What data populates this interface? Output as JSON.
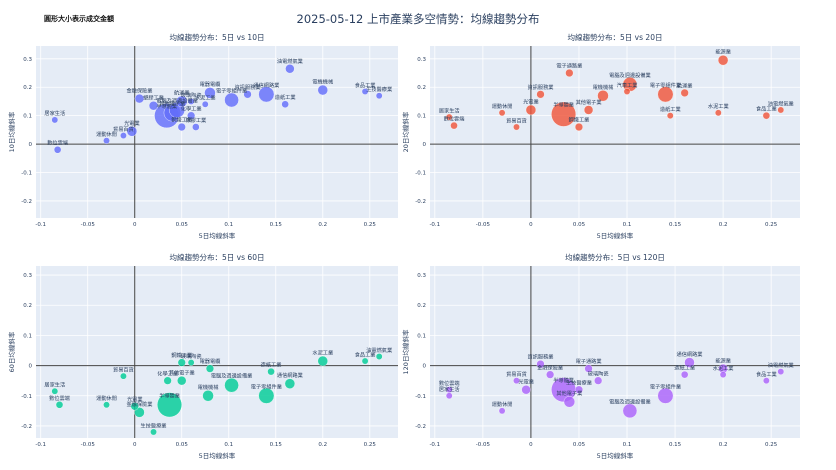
{
  "title": "2025-05-12 上市產業多空情勢：均線趨勢分布",
  "size_note": "圓形大小表示成交金額",
  "colors": {
    "p10": "#636efa",
    "p20": "#ef553b",
    "p60": "#00cc96",
    "p120": "#ab63fa",
    "plot_bg": "#e5ecf6",
    "grid": "#ffffff",
    "zero_line": "#444444"
  },
  "chart_data": [
    {
      "type": "scatter",
      "title": "均線趨勢分布：5日 vs 10日",
      "xlabel": "5日均線斜率",
      "ylabel": "10日均線斜率",
      "xlim": [
        -0.105,
        0.28
      ],
      "ylim": [
        -0.26,
        0.345
      ],
      "xticks": [
        -0.1,
        -0.05,
        0,
        0.05,
        0.1,
        0.15,
        0.2,
        0.25
      ],
      "yticks": [
        -0.2,
        -0.1,
        0,
        0.1,
        0.2,
        0.3
      ],
      "points": [
        {
          "label": "居家生活",
          "x": -0.085,
          "y": 0.085,
          "s": 2
        },
        {
          "label": "數位雲端",
          "x": -0.082,
          "y": -0.02,
          "s": 2.5
        },
        {
          "label": "運動休閒",
          "x": -0.03,
          "y": 0.012,
          "s": 2
        },
        {
          "label": "貿易百貨",
          "x": -0.012,
          "y": 0.03,
          "s": 2
        },
        {
          "label": "光電業",
          "x": -0.003,
          "y": 0.045,
          "s": 5
        },
        {
          "label": "金融保險業",
          "x": 0.005,
          "y": 0.16,
          "s": 4
        },
        {
          "label": "塑膠工業",
          "x": 0.02,
          "y": 0.135,
          "s": 4
        },
        {
          "label": "半導體業",
          "x": 0.034,
          "y": 0.1,
          "s": 30
        },
        {
          "label": "其他電子業",
          "x": 0.04,
          "y": 0.11,
          "s": 14
        },
        {
          "label": "電腦及週邊設備業",
          "x": 0.045,
          "y": 0.12,
          "s": 12
        },
        {
          "label": "航運業",
          "x": 0.05,
          "y": 0.15,
          "s": 6
        },
        {
          "label": "化學工業",
          "x": 0.06,
          "y": 0.1,
          "s": 3
        },
        {
          "label": "鋼鐵工業",
          "x": 0.05,
          "y": 0.06,
          "s": 3
        },
        {
          "label": "橡膠工業",
          "x": 0.065,
          "y": 0.06,
          "s": 2.5
        },
        {
          "label": "玻璃陶瓷",
          "x": 0.06,
          "y": 0.15,
          "s": 2
        },
        {
          "label": "水泥工業",
          "x": 0.075,
          "y": 0.14,
          "s": 2
        },
        {
          "label": "電器電纜",
          "x": 0.08,
          "y": 0.18,
          "s": 6
        },
        {
          "label": "電子零組件業",
          "x": 0.103,
          "y": 0.155,
          "s": 10
        },
        {
          "label": "資訊服務業",
          "x": 0.12,
          "y": 0.175,
          "s": 3
        },
        {
          "label": "通信網路業",
          "x": 0.14,
          "y": 0.175,
          "s": 12
        },
        {
          "label": "造紙工業",
          "x": 0.16,
          "y": 0.14,
          "s": 2.5
        },
        {
          "label": "油電燃氣業",
          "x": 0.165,
          "y": 0.265,
          "s": 4
        },
        {
          "label": "電機機械",
          "x": 0.2,
          "y": 0.19,
          "s": 5
        },
        {
          "label": "食品工業",
          "x": 0.245,
          "y": 0.185,
          "s": 2
        },
        {
          "label": "生技醫療業",
          "x": 0.26,
          "y": 0.17,
          "s": 2
        }
      ]
    },
    {
      "type": "scatter",
      "title": "均線趨勢分布：5日 vs 20日",
      "xlabel": "5日均線斜率",
      "ylabel": "20日均線斜率",
      "xlim": [
        -0.105,
        0.28
      ],
      "ylim": [
        -0.26,
        0.345
      ],
      "xticks": [
        -0.1,
        -0.05,
        0,
        0.05,
        0.1,
        0.15,
        0.2,
        0.25
      ],
      "yticks": [
        -0.2,
        -0.1,
        0,
        0.1,
        0.2,
        0.3
      ],
      "points": [
        {
          "label": "居家生活",
          "x": -0.085,
          "y": 0.095,
          "s": 2
        },
        {
          "label": "數位雲端",
          "x": -0.08,
          "y": 0.065,
          "s": 2.5
        },
        {
          "label": "運動休閒",
          "x": -0.03,
          "y": 0.11,
          "s": 2
        },
        {
          "label": "貿易百貨",
          "x": -0.015,
          "y": 0.06,
          "s": 2
        },
        {
          "label": "光電業",
          "x": 0,
          "y": 0.12,
          "s": 5
        },
        {
          "label": "資訊服務業",
          "x": 0.01,
          "y": 0.175,
          "s": 3
        },
        {
          "label": "電子通路業",
          "x": 0.04,
          "y": 0.25,
          "s": 3
        },
        {
          "label": "半導體業",
          "x": 0.034,
          "y": 0.105,
          "s": 30
        },
        {
          "label": "鋼鐵工業",
          "x": 0.05,
          "y": 0.06,
          "s": 3
        },
        {
          "label": "其他電子業",
          "x": 0.06,
          "y": 0.12,
          "s": 4
        },
        {
          "label": "電機機械",
          "x": 0.075,
          "y": 0.17,
          "s": 6
        },
        {
          "label": "電腦及週邊設備業",
          "x": 0.103,
          "y": 0.21,
          "s": 10
        },
        {
          "label": "汽車工業",
          "x": 0.1,
          "y": 0.185,
          "s": 2
        },
        {
          "label": "電子零組件業",
          "x": 0.14,
          "y": 0.175,
          "s": 12
        },
        {
          "label": "航運業",
          "x": 0.16,
          "y": 0.18,
          "s": 3
        },
        {
          "label": "造紙工業",
          "x": 0.145,
          "y": 0.1,
          "s": 2
        },
        {
          "label": "水泥工業",
          "x": 0.195,
          "y": 0.11,
          "s": 2
        },
        {
          "label": "能源業",
          "x": 0.2,
          "y": 0.295,
          "s": 5
        },
        {
          "label": "食品工業",
          "x": 0.245,
          "y": 0.1,
          "s": 2.5
        },
        {
          "label": "油電燃氣業",
          "x": 0.26,
          "y": 0.12,
          "s": 2
        }
      ]
    },
    {
      "type": "scatter",
      "title": "均線趨勢分布：5日 vs 60日",
      "xlabel": "5日均線斜率",
      "ylabel": "60日均線斜率",
      "xlim": [
        -0.105,
        0.28
      ],
      "ylim": [
        -0.24,
        0.33
      ],
      "xticks": [
        -0.1,
        -0.05,
        0,
        0.05,
        0.1,
        0.15,
        0.2,
        0.25
      ],
      "yticks": [
        -0.2,
        -0.1,
        0,
        0.1,
        0.2,
        0.3
      ],
      "points": [
        {
          "label": "居家生活",
          "x": -0.085,
          "y": -0.085,
          "s": 2
        },
        {
          "label": "數位雲端",
          "x": -0.08,
          "y": -0.13,
          "s": 2.5
        },
        {
          "label": "運動休閒",
          "x": -0.03,
          "y": -0.13,
          "s": 2
        },
        {
          "label": "貿易百貨",
          "x": -0.012,
          "y": -0.035,
          "s": 2
        },
        {
          "label": "光電業",
          "x": 0,
          "y": -0.135,
          "s": 3
        },
        {
          "label": "金融保險業",
          "x": 0.005,
          "y": -0.155,
          "s": 5
        },
        {
          "label": "生技醫療業",
          "x": 0.02,
          "y": -0.22,
          "s": 2
        },
        {
          "label": "化學工業",
          "x": 0.035,
          "y": -0.05,
          "s": 3
        },
        {
          "label": "鋼鐵工業",
          "x": 0.05,
          "y": 0.01,
          "s": 3
        },
        {
          "label": "半導體業",
          "x": 0.037,
          "y": -0.13,
          "s": 30
        },
        {
          "label": "其他電子業",
          "x": 0.05,
          "y": -0.05,
          "s": 4
        },
        {
          "label": "玻璃陶瓷",
          "x": 0.06,
          "y": 0.01,
          "s": 2
        },
        {
          "label": "電器電纜",
          "x": 0.08,
          "y": -0.01,
          "s": 3
        },
        {
          "label": "電機機械",
          "x": 0.078,
          "y": -0.1,
          "s": 6
        },
        {
          "label": "電腦及週邊設備業",
          "x": 0.103,
          "y": -0.065,
          "s": 10
        },
        {
          "label": "電子零組件業",
          "x": 0.14,
          "y": -0.1,
          "s": 12
        },
        {
          "label": "造紙工業",
          "x": 0.145,
          "y": -0.02,
          "s": 2.5
        },
        {
          "label": "通信網路業",
          "x": 0.165,
          "y": -0.06,
          "s": 5
        },
        {
          "label": "水泥工業",
          "x": 0.2,
          "y": 0.015,
          "s": 5
        },
        {
          "label": "食品工業",
          "x": 0.245,
          "y": 0.015,
          "s": 2
        },
        {
          "label": "油電燃氣業",
          "x": 0.26,
          "y": 0.03,
          "s": 2
        }
      ]
    },
    {
      "type": "scatter",
      "title": "均線趨勢分布：5日 vs 120日",
      "xlabel": "5日均線斜率",
      "ylabel": "120日均線斜率",
      "xlim": [
        -0.105,
        0.28
      ],
      "ylim": [
        -0.24,
        0.33
      ],
      "xticks": [
        -0.1,
        -0.05,
        0,
        0.05,
        0.1,
        0.15,
        0.2,
        0.25
      ],
      "yticks": [
        -0.2,
        -0.1,
        0,
        0.1,
        0.2,
        0.3
      ],
      "points": [
        {
          "label": "數位雲端",
          "x": -0.085,
          "y": -0.08,
          "s": 2
        },
        {
          "label": "居家生活",
          "x": -0.085,
          "y": -0.1,
          "s": 2
        },
        {
          "label": "運動休閒",
          "x": -0.03,
          "y": -0.15,
          "s": 2
        },
        {
          "label": "貿易百貨",
          "x": -0.015,
          "y": -0.05,
          "s": 2
        },
        {
          "label": "光電業",
          "x": -0.005,
          "y": -0.08,
          "s": 4
        },
        {
          "label": "資訊服務業",
          "x": 0.01,
          "y": 0.005,
          "s": 3
        },
        {
          "label": "金融保險業",
          "x": 0.02,
          "y": -0.03,
          "s": 3
        },
        {
          "label": "半導體業",
          "x": 0.034,
          "y": -0.08,
          "s": 30
        },
        {
          "label": "其他電子業",
          "x": 0.04,
          "y": -0.12,
          "s": 6
        },
        {
          "label": "生技醫療業",
          "x": 0.05,
          "y": -0.08,
          "s": 3
        },
        {
          "label": "電子通路業",
          "x": 0.06,
          "y": -0.01,
          "s": 3
        },
        {
          "label": "玻璃陶瓷",
          "x": 0.07,
          "y": -0.05,
          "s": 3
        },
        {
          "label": "電腦及週邊設備業",
          "x": 0.103,
          "y": -0.15,
          "s": 10
        },
        {
          "label": "電子零組件業",
          "x": 0.14,
          "y": -0.1,
          "s": 12
        },
        {
          "label": "通信網路業",
          "x": 0.165,
          "y": 0.01,
          "s": 5
        },
        {
          "label": "造紙工業",
          "x": 0.16,
          "y": -0.03,
          "s": 2.5
        },
        {
          "label": "能源業",
          "x": 0.2,
          "y": -0.01,
          "s": 4
        },
        {
          "label": "水泥工業",
          "x": 0.2,
          "y": -0.03,
          "s": 2
        },
        {
          "label": "食品工業",
          "x": 0.245,
          "y": -0.05,
          "s": 2
        },
        {
          "label": "油電燃氣業",
          "x": 0.26,
          "y": -0.02,
          "s": 2
        }
      ]
    }
  ]
}
